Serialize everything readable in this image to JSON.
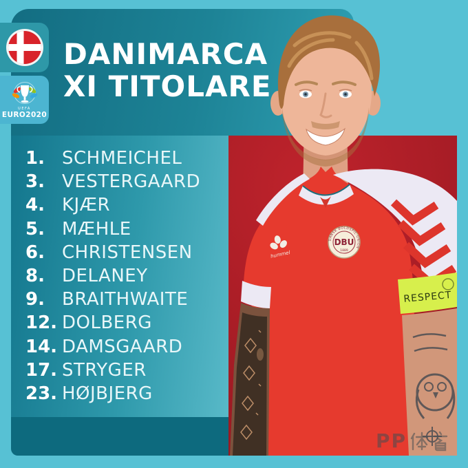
{
  "header": {
    "title_line1": "DANIMARCA",
    "title_line2": "XI TITOLARE"
  },
  "badges": {
    "flag_icon": "denmark-flag",
    "uefa_label": "UEFA",
    "euro_label": "EURO2020"
  },
  "lineup": [
    {
      "number": "1.",
      "name": "SCHMEICHEL"
    },
    {
      "number": "3.",
      "name": "VESTERGAARD"
    },
    {
      "number": "4.",
      "name": "KJÆR"
    },
    {
      "number": "5.",
      "name": "MÆHLE"
    },
    {
      "number": "6.",
      "name": "CHRISTENSEN"
    },
    {
      "number": "8.",
      "name": "DELANEY"
    },
    {
      "number": "9.",
      "name": "BRAITHWAITE"
    },
    {
      "number": "12.",
      "name": "DOLBERG"
    },
    {
      "number": "14.",
      "name": "DAMSGAARD"
    },
    {
      "number": "17.",
      "name": "STRYGER"
    },
    {
      "number": "23.",
      "name": "HØJBJERG"
    }
  ],
  "player_photo": {
    "crest_ring_text": "DANSK BOLDSPIL-UNION",
    "crest_initials": "DBU",
    "crest_year": "1889",
    "kit_brand": "hummel",
    "armband_label": "RESPECT"
  },
  "watermark": {
    "text": "PP体育",
    "latin": "PP"
  },
  "colors": {
    "background_turquoise": "#57c1d4",
    "header_teal": "#1d8396",
    "list_teal_light": "#58b9c8",
    "footer_teal": "#0d6a7e",
    "photo_red": "#a51c25",
    "jersey_red": "#e63a2e",
    "sleeve_white": "#ece9f4",
    "armband_green": "#d7ef4c",
    "flag_red": "#d8232a",
    "text_white": "#ffffff"
  }
}
